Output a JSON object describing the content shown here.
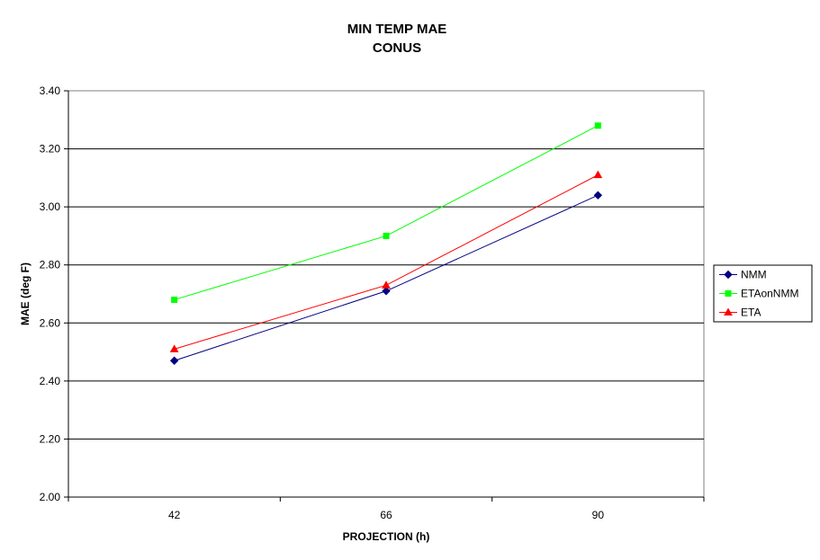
{
  "chart_data": {
    "type": "line",
    "title": "MIN TEMP MAE",
    "subtitle": "CONUS",
    "xlabel": "PROJECTION (h)",
    "ylabel": "MAE (deg F)",
    "categories": [
      "42",
      "66",
      "90"
    ],
    "ylim": [
      2.0,
      3.4
    ],
    "yticks": [
      "2.00",
      "2.20",
      "2.40",
      "2.60",
      "2.80",
      "3.00",
      "3.20",
      "3.40"
    ],
    "grid": "horizontal",
    "legend_position": "right",
    "series": [
      {
        "name": "NMM",
        "values": [
          2.47,
          2.71,
          3.04
        ],
        "color": "#000080",
        "marker": "diamond"
      },
      {
        "name": "ETAonNMM",
        "values": [
          2.68,
          2.9,
          3.28
        ],
        "color": "#00ff00",
        "marker": "square"
      },
      {
        "name": "ETA",
        "values": [
          2.51,
          2.73,
          3.11
        ],
        "color": "#ff0000",
        "marker": "triangle"
      }
    ]
  }
}
